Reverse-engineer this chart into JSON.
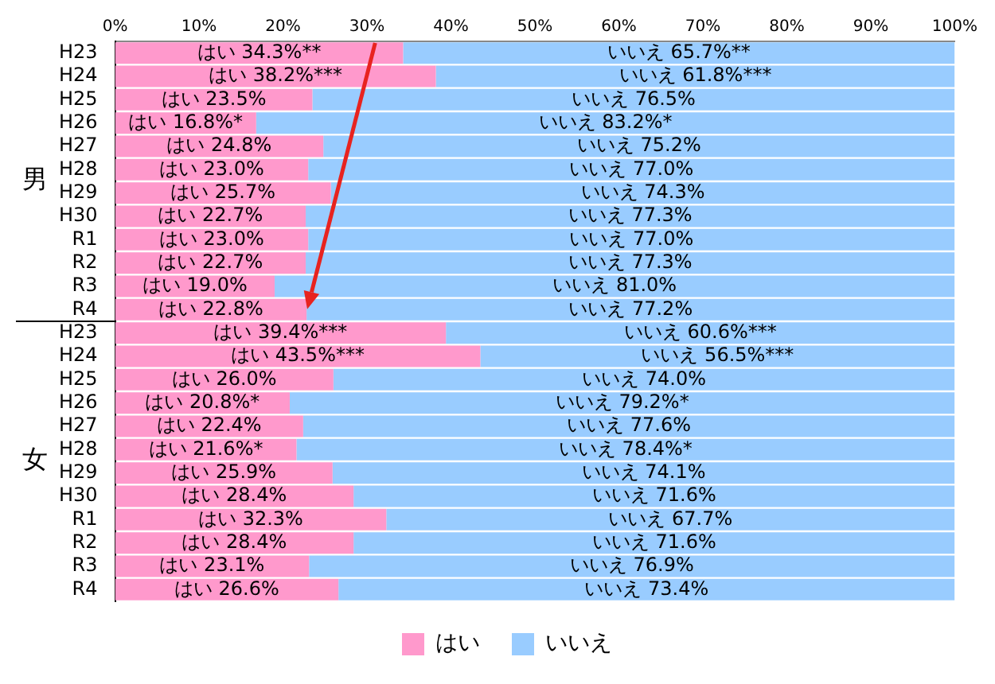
{
  "chart_data": {
    "type": "bar",
    "orientation": "horizontal",
    "stacked": true,
    "categories": [
      "H23",
      "H24",
      "H25",
      "H26",
      "H27",
      "H28",
      "H29",
      "H30",
      "R1",
      "R2",
      "R3",
      "R4",
      "H23",
      "H24",
      "H25",
      "H26",
      "H27",
      "H28",
      "H29",
      "H30",
      "R1",
      "R2",
      "R3",
      "R4"
    ],
    "series": [
      {
        "name": "はい",
        "color": "#ff99cc",
        "values": [
          34.3,
          38.2,
          23.5,
          16.8,
          24.8,
          23.0,
          25.7,
          22.7,
          23.0,
          22.7,
          19.0,
          22.8,
          39.4,
          43.5,
          26.0,
          20.8,
          22.4,
          21.6,
          25.9,
          28.4,
          32.3,
          28.4,
          23.1,
          26.6
        ],
        "value_labels": [
          "はい 34.3%**",
          "はい 38.2%***",
          "はい 23.5%",
          "はい 16.8%*",
          "はい 24.8%",
          "はい 23.0%",
          "はい 25.7%",
          "はい 22.7%",
          "はい 23.0%",
          "はい 22.7%",
          "はい 19.0%",
          "はい 22.8%",
          "はい 39.4%***",
          "はい 43.5%***",
          "はい 26.0%",
          "はい 20.8%*",
          "はい 22.4%",
          "はい 21.6%*",
          "はい 25.9%",
          "はい 28.4%",
          "はい 32.3%",
          "はい 28.4%",
          "はい 23.1%",
          "はい 26.6%"
        ]
      },
      {
        "name": "いいえ",
        "color": "#99ccff",
        "values": [
          65.7,
          61.8,
          76.5,
          83.2,
          75.2,
          77.0,
          74.3,
          77.3,
          77.0,
          77.3,
          81.0,
          77.2,
          60.6,
          56.5,
          74.0,
          79.2,
          77.6,
          78.4,
          74.1,
          71.6,
          67.7,
          71.6,
          76.9,
          73.4
        ],
        "value_labels": [
          "いいえ 65.7%**",
          "いいえ 61.8%***",
          "いいえ 76.5%",
          "いいえ 83.2%*",
          "いいえ 75.2%",
          "いいえ 77.0%",
          "いいえ 74.3%",
          "いいえ 77.3%",
          "いいえ 77.0%",
          "いいえ 77.3%",
          "いいえ 81.0%",
          "いいえ 77.2%",
          "いいえ 60.6%***",
          "いいえ 56.5%***",
          "いいえ 74.0%",
          "いいえ 79.2%*",
          "いいえ 77.6%",
          "いいえ 78.4%*",
          "いいえ 74.1%",
          "いいえ 71.6%",
          "いいえ 67.7%",
          "いいえ 71.6%",
          "いいえ 76.9%",
          "いいえ 73.4%"
        ]
      }
    ],
    "annotations": [
      "男",
      "女"
    ],
    "xlim": [
      0,
      100
    ],
    "xticks": [
      {
        "value": 0,
        "label": "0%"
      },
      {
        "value": 10,
        "label": "10%"
      },
      {
        "value": 20,
        "label": "20%"
      },
      {
        "value": 30,
        "label": "30%"
      },
      {
        "value": 40,
        "label": "40%"
      },
      {
        "value": 50,
        "label": "50%"
      },
      {
        "value": 60,
        "label": "60%"
      },
      {
        "value": 70,
        "label": "70%"
      },
      {
        "value": 80,
        "label": "80%"
      },
      {
        "value": 90,
        "label": "90%"
      },
      {
        "value": 100,
        "label": "100%"
      }
    ],
    "grid": false,
    "legend": "bottom"
  }
}
